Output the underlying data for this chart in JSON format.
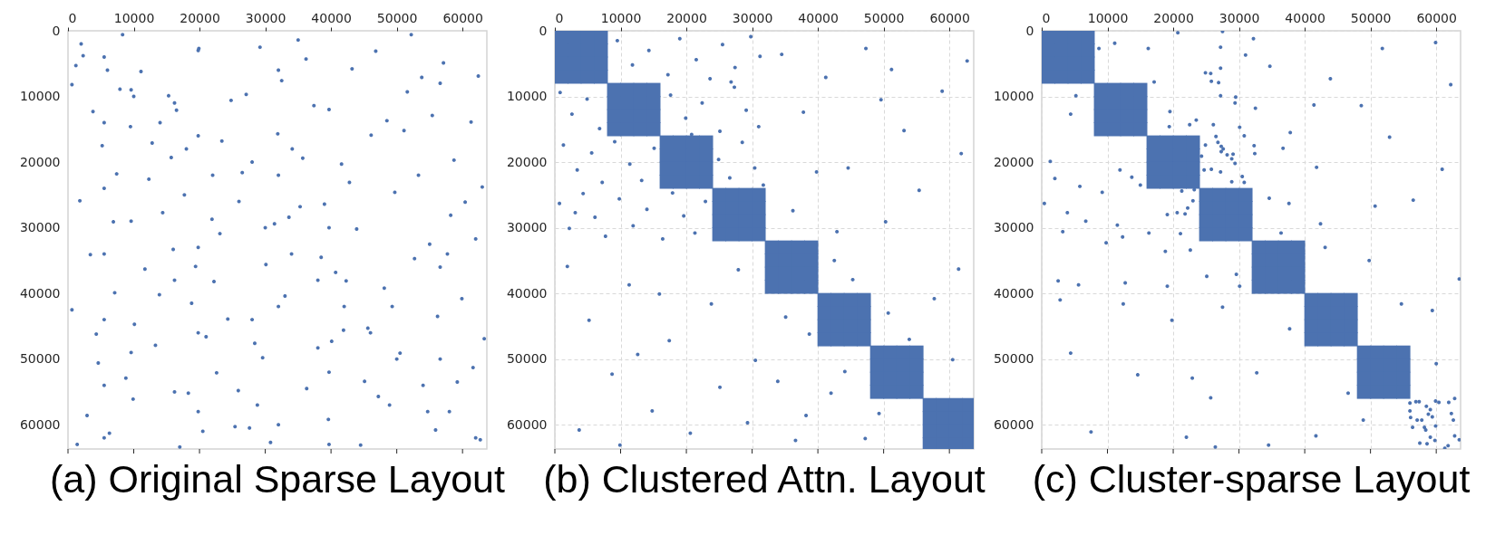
{
  "chart_data": [
    {
      "type": "scatter",
      "title": "(a) Original Sparse Layout",
      "xlim": [
        0,
        63700
      ],
      "ylim": [
        63700,
        0
      ],
      "xticks": [
        0,
        10000,
        20000,
        30000,
        40000,
        50000,
        60000
      ],
      "yticks": [
        0,
        10000,
        20000,
        30000,
        40000,
        50000,
        60000
      ],
      "series": [
        {
          "color": "#4c72b0",
          "marker": "circle",
          "x": [
            1200,
            7400,
            13900,
            20500,
            27100,
            33600,
            40100,
            46800,
            53300,
            59900,
            2900,
            9500,
            16000,
            22600,
            29200,
            35700,
            42300,
            48900,
            55400,
            62000,
            4600,
            11100,
            17700,
            24300,
            30800,
            37400,
            43900,
            50500,
            57100,
            63000,
            600,
            6300,
            12800,
            19400,
            25900,
            32500,
            39000,
            45600,
            52200,
            58700,
            3400,
            8800,
            15300,
            21900,
            28400,
            35000,
            41600,
            48100,
            54700,
            61300,
            1800,
            10100,
            17000,
            23400,
            30100,
            36300,
            43200,
            49700,
            56200,
            62700,
            5200,
            11700,
            18300,
            24800,
            31400,
            38000,
            44500,
            51100,
            57700,
            600,
            7900,
            14400,
            21000,
            27600,
            34100,
            40700,
            47200,
            53800,
            60400,
            3800,
            8300,
            15700,
            22200,
            28800,
            35300,
            41900,
            48500,
            55000,
            61600,
            2300,
            6900,
            13300,
            19900,
            26500,
            33000,
            39600,
            46100,
            52700,
            59200,
            4300,
            9900,
            16500,
            23100,
            29600,
            36200,
            42800,
            49300,
            55900,
            62400,
            1400,
            12300,
            18800,
            25400,
            31900,
            38500,
            45100,
            51600,
            58200,
            63300,
            7100,
            5500,
            5500,
            5500,
            5500,
            5500,
            5500,
            5500,
            9600,
            9600,
            9600,
            16200,
            16200,
            16200,
            19800,
            19800,
            19800,
            19800,
            19800,
            28000,
            28000,
            32000,
            32000,
            32000,
            32000,
            39700,
            39700,
            39700,
            39700,
            56600,
            56600,
            56600,
            2000,
            6000,
            10000,
            14000,
            18000,
            22000,
            26000,
            30000,
            34000,
            38000,
            42000,
            46000,
            50000,
            54000,
            58000,
            62000
          ],
          "values": [
            5300,
            21800,
            40200,
            61000,
            9700,
            28400,
            47300,
            3100,
            22000,
            40800,
            58600,
            14600,
            33300,
            52100,
            2500,
            19400,
            38100,
            57000,
            12900,
            31700,
            50600,
            6200,
            25000,
            43900,
            62700,
            11400,
            30200,
            49100,
            4900,
            23800,
            42500,
            61300,
            17100,
            35900,
            54800,
            7600,
            26400,
            45300,
            600,
            19700,
            34100,
            52900,
            9900,
            28700,
            47600,
            1400,
            20300,
            39200,
            58000,
            13900,
            25900,
            44700,
            63400,
            16800,
            35600,
            54500,
            5800,
            24600,
            43500,
            62300,
            17500,
            36300,
            55200,
            10600,
            29400,
            48300,
            63100,
            15200,
            34000,
            8200,
            8900,
            27700,
            46600,
            60500,
            18000,
            36800,
            55700,
            7100,
            26100,
            12300,
            600,
            19300,
            38200,
            57000,
            26800,
            45600,
            13700,
            32500,
            51300,
            3800,
            29100,
            47900,
            2700,
            21600,
            40400,
            59200,
            15900,
            34700,
            53500,
            46200,
            56100,
            12100,
            30900,
            49800,
            4300,
            23100,
            42000,
            60800,
            6900,
            63000,
            22600,
            41500,
            60300,
            15700,
            34500,
            53400,
            9300,
            28100,
            46900,
            39900,
            4000,
            14000,
            24000,
            34000,
            44000,
            54000,
            62000,
            9000,
            29000,
            49000,
            11000,
            38000,
            55000,
            3000,
            16000,
            33000,
            46000,
            58000,
            20000,
            44000,
            6000,
            22000,
            42000,
            60000,
            12000,
            30000,
            52000,
            63000,
            8000,
            36000,
            50000,
            2000,
            6000,
            10000,
            14000,
            18000,
            22000,
            26000,
            30000,
            34000,
            38000,
            42000,
            46000,
            50000,
            54000,
            58000,
            62000
          ]
        }
      ]
    },
    {
      "type": "scatter",
      "title": "(b) Clustered Attn. Layout",
      "xlim": [
        0,
        63700
      ],
      "ylim": [
        63700,
        0
      ],
      "xticks": [
        0,
        10000,
        20000,
        30000,
        40000,
        50000,
        60000
      ],
      "yticks": [
        0,
        10000,
        20000,
        30000,
        40000,
        50000,
        60000
      ],
      "grid": true,
      "series": [
        {
          "color": "#4c72b0",
          "marker": "square",
          "x": [
            1000,
            3000,
            5000,
            7000,
            1000,
            3000,
            5000,
            7000,
            1000,
            3000,
            5000,
            7000,
            1000,
            3000,
            5000,
            7000,
            9000,
            11000,
            13000,
            15000,
            9000,
            11000,
            13000,
            15000,
            9000,
            11000,
            13000,
            15000,
            9000,
            11000,
            13000,
            15000,
            17000,
            19000,
            21000,
            23000,
            17000,
            19000,
            21000,
            23000,
            17000,
            19000,
            21000,
            23000,
            17000,
            19000,
            21000,
            23000,
            25000,
            27000,
            29000,
            31000,
            25000,
            27000,
            29000,
            31000,
            25000,
            27000,
            29000,
            31000,
            25000,
            27000,
            29000,
            31000,
            33000,
            35000,
            37000,
            39000,
            33000,
            35000,
            37000,
            39000,
            33000,
            35000,
            37000,
            39000,
            33000,
            35000,
            37000,
            39000,
            41000,
            43000,
            45000,
            47000,
            41000,
            43000,
            45000,
            47000,
            41000,
            43000,
            45000,
            47000,
            41000,
            43000,
            45000,
            47000,
            49000,
            51000,
            53000,
            55000,
            49000,
            51000,
            53000,
            55000,
            49000,
            51000,
            53000,
            55000,
            49000,
            51000,
            53000,
            55000,
            57000,
            59000,
            61000,
            63000,
            57000,
            59000,
            61000,
            63000,
            57000,
            59000,
            61000,
            63000,
            57000,
            59000,
            61000,
            63000
          ],
          "values": [
            1000,
            1000,
            1000,
            1000,
            3000,
            3000,
            3000,
            3000,
            5000,
            5000,
            5000,
            5000,
            7000,
            7000,
            7000,
            7000,
            9000,
            9000,
            9000,
            9000,
            11000,
            11000,
            11000,
            11000,
            13000,
            13000,
            13000,
            13000,
            15000,
            15000,
            15000,
            15000,
            17000,
            17000,
            17000,
            17000,
            19000,
            19000,
            19000,
            19000,
            21000,
            21000,
            21000,
            21000,
            23000,
            23000,
            23000,
            23000,
            25000,
            25000,
            25000,
            25000,
            27000,
            27000,
            27000,
            27000,
            29000,
            29000,
            29000,
            29000,
            31000,
            31000,
            31000,
            31000,
            33000,
            33000,
            33000,
            33000,
            35000,
            35000,
            35000,
            35000,
            37000,
            37000,
            37000,
            37000,
            39000,
            39000,
            39000,
            39000,
            41000,
            41000,
            41000,
            41000,
            43000,
            43000,
            43000,
            43000,
            45000,
            45000,
            45000,
            45000,
            47000,
            47000,
            47000,
            47000,
            49000,
            49000,
            49000,
            49000,
            51000,
            51000,
            51000,
            51000,
            53000,
            53000,
            53000,
            53000,
            55000,
            55000,
            55000,
            55000,
            57000,
            57000,
            57000,
            57000,
            59000,
            59000,
            59000,
            59000,
            61000,
            61000,
            61000,
            61000,
            63000,
            63000,
            63000,
            63000
          ]
        },
        {
          "color": "#4c72b0",
          "marker": "circle",
          "x": [
            9500,
            11800,
            14300,
            17200,
            19000,
            21500,
            23600,
            25500,
            27400,
            29800,
            31200,
            26800,
            800,
            2600,
            4900,
            6800,
            17600,
            19900,
            22400,
            25100,
            27300,
            29100,
            31000,
            20800,
            1300,
            3400,
            5600,
            7200,
            9100,
            11400,
            13200,
            15100,
            24900,
            26600,
            28500,
            30400,
            31700,
            700,
            2200,
            4300,
            6100,
            7700,
            9800,
            11900,
            14000,
            16400,
            17900,
            19600,
            21300,
            22900,
            3100,
            34500,
            37800,
            41200,
            44600,
            47300,
            49600,
            51200,
            53100,
            55400,
            50300,
            58900,
            61800,
            36200,
            42900,
            62700,
            39800,
            1900,
            5200,
            8700,
            11300,
            14800,
            17400,
            20600,
            23800,
            25100,
            27900,
            30500,
            3700,
            9900,
            15900,
            29300,
            12600,
            42500,
            45300,
            35100,
            38700,
            50700,
            53900,
            33900,
            38200,
            44100,
            47200,
            57700,
            61400,
            60500,
            49300,
            36600,
            42000
          ],
          "values": [
            1500,
            5200,
            3000,
            6700,
            1200,
            4400,
            7300,
            2100,
            5600,
            900,
            3900,
            7800,
            9400,
            12700,
            10400,
            14900,
            9800,
            13300,
            11000,
            15300,
            8600,
            12100,
            14600,
            15800,
            17400,
            21200,
            18600,
            23100,
            16900,
            20300,
            22800,
            17900,
            19600,
            22400,
            17000,
            20900,
            23500,
            26300,
            30100,
            24800,
            28400,
            31300,
            25600,
            29700,
            27200,
            31700,
            24700,
            28200,
            30800,
            26000,
            27700,
            3600,
            12400,
            7100,
            20900,
            2700,
            10500,
            5900,
            15200,
            24300,
            29100,
            9200,
            18700,
            27400,
            30600,
            4600,
            21500,
            35900,
            44100,
            52300,
            38700,
            57900,
            47200,
            61300,
            41600,
            54300,
            36400,
            50200,
            60800,
            63100,
            40100,
            59700,
            49300,
            35000,
            37900,
            43600,
            46200,
            43000,
            47000,
            53400,
            58600,
            51900,
            62100,
            40800,
            36300,
            50100,
            58300,
            62400,
            55200
          ]
        }
      ]
    },
    {
      "type": "scatter",
      "title": "(c) Cluster-sparse Layout",
      "xlim": [
        0,
        63700
      ],
      "ylim": [
        63700,
        0
      ],
      "xticks": [
        0,
        10000,
        20000,
        30000,
        40000,
        50000,
        60000
      ],
      "yticks": [
        0,
        10000,
        20000,
        30000,
        40000,
        50000,
        60000
      ],
      "grid": true,
      "series": [
        {
          "color": "#4c72b0",
          "marker": "square",
          "x": [
            1000,
            3000,
            5000,
            7000,
            1000,
            3000,
            5000,
            7000,
            1000,
            3000,
            5000,
            7000,
            1000,
            3000,
            5000,
            7000,
            9000,
            11000,
            13000,
            15000,
            9000,
            11000,
            13000,
            15000,
            9000,
            11000,
            13000,
            15000,
            9000,
            11000,
            13000,
            15000,
            17000,
            19000,
            21000,
            23000,
            17000,
            19000,
            21000,
            23000,
            17000,
            19000,
            21000,
            23000,
            17000,
            19000,
            21000,
            23000,
            25000,
            27000,
            29000,
            31000,
            25000,
            27000,
            29000,
            31000,
            25000,
            27000,
            29000,
            31000,
            25000,
            27000,
            29000,
            31000,
            33000,
            35000,
            37000,
            39000,
            33000,
            35000,
            37000,
            39000,
            33000,
            35000,
            37000,
            39000,
            33000,
            35000,
            37000,
            39000,
            41000,
            43000,
            45000,
            47000,
            41000,
            43000,
            45000,
            47000,
            41000,
            43000,
            45000,
            47000,
            41000,
            43000,
            45000,
            47000,
            49000,
            51000,
            53000,
            55000,
            49000,
            51000,
            53000,
            55000,
            49000,
            51000,
            53000,
            55000,
            49000,
            51000,
            53000,
            55000
          ],
          "values": [
            1000,
            1000,
            1000,
            1000,
            3000,
            3000,
            3000,
            3000,
            5000,
            5000,
            5000,
            5000,
            7000,
            7000,
            7000,
            7000,
            9000,
            9000,
            9000,
            9000,
            11000,
            11000,
            11000,
            11000,
            13000,
            13000,
            13000,
            13000,
            15000,
            15000,
            15000,
            15000,
            17000,
            17000,
            17000,
            17000,
            19000,
            19000,
            19000,
            19000,
            21000,
            21000,
            21000,
            21000,
            23000,
            23000,
            23000,
            23000,
            25000,
            25000,
            25000,
            25000,
            27000,
            27000,
            27000,
            27000,
            29000,
            29000,
            29000,
            29000,
            31000,
            31000,
            31000,
            31000,
            33000,
            33000,
            33000,
            33000,
            35000,
            35000,
            35000,
            35000,
            37000,
            37000,
            37000,
            37000,
            39000,
            39000,
            39000,
            39000,
            41000,
            41000,
            41000,
            41000,
            43000,
            43000,
            43000,
            43000,
            45000,
            45000,
            45000,
            45000,
            47000,
            47000,
            47000,
            47000,
            49000,
            49000,
            49000,
            49000,
            51000,
            51000,
            51000,
            51000,
            53000,
            53000,
            53000,
            53000,
            55000,
            55000,
            55000,
            55000
          ]
        },
        {
          "color": "#4c72b0",
          "marker": "circle",
          "x": [
            20700,
            27500,
            11100,
            8700,
            16200,
            27200,
            32200,
            31000,
            34700,
            27200,
            24900,
            25700,
            25800,
            26900,
            17100,
            43900,
            51800,
            59900,
            62200,
            5200,
            27200,
            29500,
            29400,
            32500,
            19500,
            41400,
            48600,
            4400,
            23500,
            22500,
            26100,
            30100,
            19400,
            37800,
            26500,
            30800,
            52900,
            26800,
            24900,
            27300,
            27600,
            32300,
            36700,
            27300,
            28200,
            29100,
            32400,
            28900,
            29400,
            24300,
            1300,
            41800,
            60900,
            11900,
            24700,
            25800,
            27200,
            30500,
            2000,
            13700,
            30800,
            15000,
            5800,
            28900,
            9200,
            21300,
            23200,
            400,
            23000,
            22200,
            20600,
            21800,
            19100,
            3900,
            34600,
            37600,
            56500,
            50700,
            6700,
            11500,
            42400,
            3200,
            16300,
            21100,
            36400,
            12300,
            9800,
            22600,
            18800,
            43100,
            49800,
            25100,
            29600,
            12700,
            2500,
            5600,
            19100,
            30100,
            63500,
            2800,
            12400,
            27500,
            54700,
            59400,
            19800,
            37700,
            4400,
            60000,
            14600,
            22900,
            32700,
            25700,
            46600,
            48900,
            7500,
            22000,
            26400,
            34500,
            41700,
            56000,
            56900,
            57400,
            58500,
            59100,
            59900,
            60400,
            61900,
            62800,
            56000,
            58800,
            56100,
            57100,
            57800,
            59400,
            62300,
            62600,
            56400,
            58200,
            58400,
            59900,
            57500,
            58600,
            59100,
            61800,
            61300,
            62800,
            63500,
            59800
          ],
          "values": [
            300,
            100,
            1900,
            2700,
            2700,
            2500,
            1200,
            3700,
            5400,
            5700,
            6400,
            6500,
            7700,
            7900,
            7800,
            7300,
            2700,
            1800,
            8200,
            9900,
            9900,
            10100,
            11000,
            11800,
            12300,
            11300,
            11400,
            12700,
            13600,
            14300,
            14300,
            14700,
            14600,
            15500,
            16100,
            16000,
            16200,
            17000,
            17400,
            17600,
            18000,
            17500,
            17900,
            18400,
            18900,
            18800,
            18700,
            19500,
            20200,
            19100,
            19900,
            20800,
            21100,
            21200,
            21200,
            21100,
            21500,
            22200,
            22500,
            22300,
            23100,
            23500,
            23700,
            23000,
            24600,
            24400,
            24200,
            26300,
            25900,
            27000,
            27700,
            27900,
            28000,
            27700,
            25500,
            26300,
            25800,
            26700,
            29000,
            29600,
            29400,
            30600,
            30800,
            30900,
            30800,
            31400,
            32300,
            33400,
            33600,
            33000,
            35000,
            37400,
            37100,
            38400,
            38100,
            38700,
            38900,
            38900,
            37800,
            41000,
            41600,
            42100,
            41600,
            42600,
            44100,
            45400,
            49100,
            50700,
            52400,
            52900,
            52100,
            55900,
            55200,
            59300,
            61100,
            61900,
            63400,
            63100,
            61700,
            56700,
            56500,
            56500,
            57200,
            57700,
            56400,
            56600,
            56600,
            56000,
            57900,
            58400,
            58900,
            59300,
            59300,
            58800,
            58300,
            59300,
            60400,
            60400,
            60800,
            60200,
            62800,
            62900,
            61900,
            63200,
            63600,
            61700,
            62300,
            62400
          ]
        }
      ]
    }
  ]
}
